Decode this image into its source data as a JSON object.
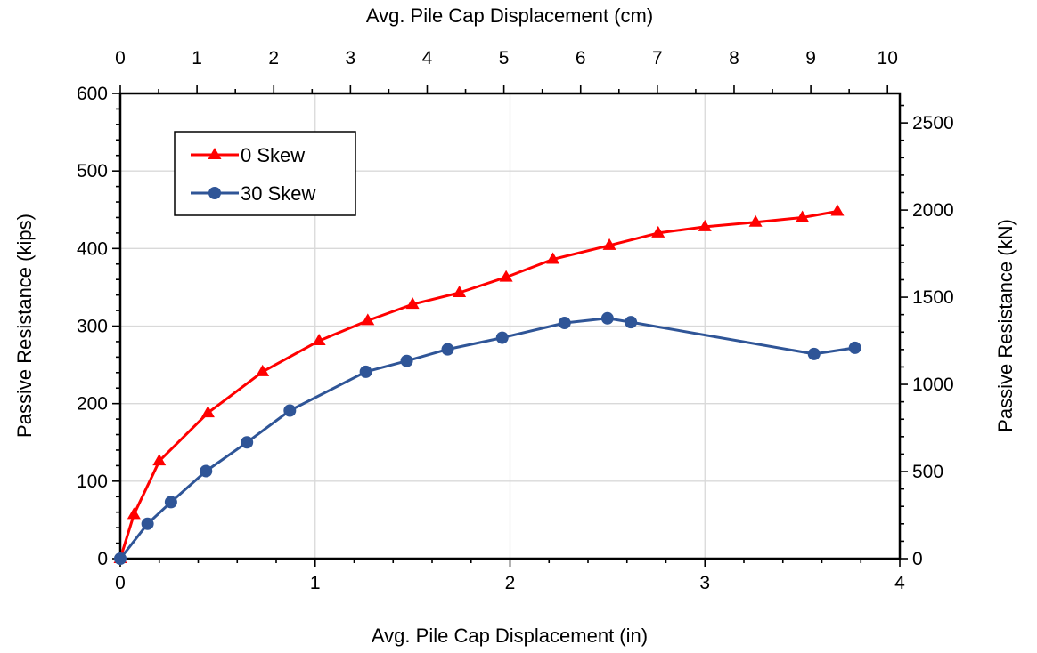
{
  "chart_data": {
    "type": "line",
    "title": "",
    "xlabel": "Avg. Pile Cap Displacement (in)",
    "x2label": "Avg. Pile Cap Displacement (cm)",
    "ylabel": "Passive Resistance (kips)",
    "y2label": "Passive Resistance (kN)",
    "xlim": [
      0,
      4
    ],
    "ylim": [
      0,
      600
    ],
    "x2lim": [
      0,
      10.16
    ],
    "y2lim": [
      0,
      2669
    ],
    "xticks": [
      "0",
      "1",
      "2",
      "3",
      "4"
    ],
    "yticks": [
      "0",
      "100",
      "200",
      "300",
      "400",
      "500",
      "600"
    ],
    "x2ticks": [
      "0",
      "1",
      "2",
      "3",
      "4",
      "5",
      "6",
      "7",
      "8",
      "9",
      "10"
    ],
    "y2ticks": [
      "0",
      "500",
      "1000",
      "1500",
      "2000",
      "2500"
    ],
    "grid": true,
    "legend_position": "top-left",
    "series": [
      {
        "name": "0 Skew",
        "color": "#ff0000",
        "marker": "triangle",
        "x": [
          0.0,
          0.07,
          0.2,
          0.45,
          0.73,
          1.02,
          1.27,
          1.5,
          1.74,
          1.98,
          2.22,
          2.51,
          2.76,
          3.0,
          3.26,
          3.5,
          3.68
        ],
        "y": [
          0,
          57,
          126,
          188,
          241,
          281,
          307,
          328,
          343,
          363,
          386,
          404,
          420,
          428,
          434,
          440,
          448
        ]
      },
      {
        "name": "30 Skew",
        "color": "#2f5597",
        "marker": "circle",
        "x": [
          0.0,
          0.14,
          0.26,
          0.44,
          0.65,
          0.87,
          1.26,
          1.47,
          1.68,
          1.96,
          2.28,
          2.5,
          2.62,
          3.56,
          3.77
        ],
        "y": [
          0,
          45,
          73,
          113,
          150,
          191,
          241,
          255,
          270,
          285,
          304,
          310,
          305,
          264,
          272
        ]
      }
    ]
  }
}
